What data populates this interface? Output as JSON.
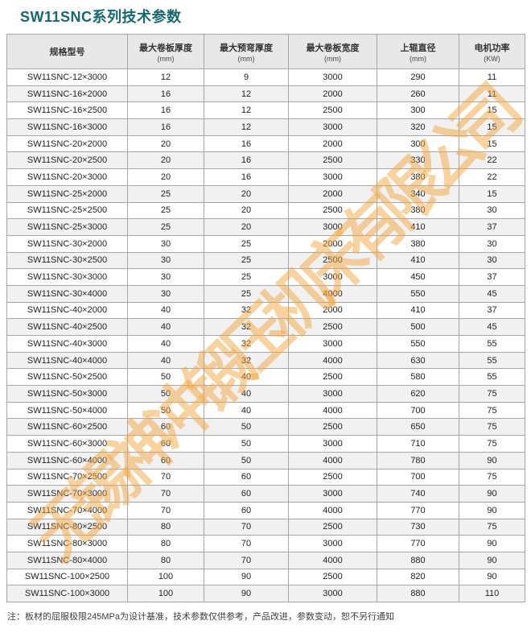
{
  "page": {
    "title": "SW11SNC系列技术参数"
  },
  "table": {
    "columns": [
      {
        "label": "规格型号",
        "unit": ""
      },
      {
        "label": "最大卷板厚度",
        "unit": "(mm)"
      },
      {
        "label": "最大预弯厚度",
        "unit": "(mm)"
      },
      {
        "label": "最大卷板宽度",
        "unit": "(mm)"
      },
      {
        "label": "上辊直径",
        "unit": "(mm)"
      },
      {
        "label": "电机功率",
        "unit": "(KW)"
      }
    ],
    "rows": [
      [
        "SW11SNC-12×3000",
        "12",
        "9",
        "3000",
        "290",
        "11"
      ],
      [
        "SW11SNC-16×2000",
        "16",
        "12",
        "2000",
        "260",
        "11"
      ],
      [
        "SW11SNC-16×2500",
        "16",
        "12",
        "2500",
        "300",
        "15"
      ],
      [
        "SW11SNC-16×3000",
        "16",
        "12",
        "3000",
        "320",
        "15"
      ],
      [
        "SW11SNC-20×2000",
        "20",
        "16",
        "2000",
        "300",
        "15"
      ],
      [
        "SW11SNC-20×2500",
        "20",
        "16",
        "2500",
        "330",
        "22"
      ],
      [
        "SW11SNC-20×3000",
        "20",
        "16",
        "3000",
        "380",
        "22"
      ],
      [
        "SW11SNC-25×2000",
        "25",
        "20",
        "2000",
        "340",
        "15"
      ],
      [
        "SW11SNC-25×2500",
        "25",
        "20",
        "2500",
        "380",
        "30"
      ],
      [
        "SW11SNC-25×3000",
        "25",
        "20",
        "3000",
        "410",
        "37"
      ],
      [
        "SW11SNC-30×2000",
        "30",
        "25",
        "2000",
        "380",
        "30"
      ],
      [
        "SW11SNC-30×2500",
        "30",
        "25",
        "2500",
        "410",
        "30"
      ],
      [
        "SW11SNC-30×3000",
        "30",
        "25",
        "3000",
        "450",
        "37"
      ],
      [
        "SW11SNC-30×4000",
        "30",
        "25",
        "4000",
        "550",
        "45"
      ],
      [
        "SW11SNC-40×2000",
        "40",
        "32",
        "2000",
        "410",
        "37"
      ],
      [
        "SW11SNC-40×2500",
        "40",
        "32",
        "2500",
        "500",
        "45"
      ],
      [
        "SW11SNC-40×3000",
        "40",
        "32",
        "3000",
        "550",
        "55"
      ],
      [
        "SW11SNC-40×4000",
        "40",
        "32",
        "4000",
        "630",
        "55"
      ],
      [
        "SW11SNC-50×2500",
        "50",
        "40",
        "2500",
        "580",
        "55"
      ],
      [
        "SW11SNC-50×3000",
        "50",
        "40",
        "3000",
        "620",
        "75"
      ],
      [
        "SW11SNC-50×4000",
        "50",
        "40",
        "4000",
        "700",
        "75"
      ],
      [
        "SW11SNC-60×2500",
        "60",
        "50",
        "2500",
        "650",
        "75"
      ],
      [
        "SW11SNC-60×3000",
        "60",
        "50",
        "3000",
        "710",
        "75"
      ],
      [
        "SW11SNC-60×4000",
        "60",
        "50",
        "4000",
        "780",
        "90"
      ],
      [
        "SW11SNC-70×2500",
        "70",
        "60",
        "2500",
        "700",
        "75"
      ],
      [
        "SW11SNC-70×3000",
        "70",
        "60",
        "3000",
        "740",
        "90"
      ],
      [
        "SW11SNC-70×4000",
        "70",
        "60",
        "4000",
        "770",
        "90"
      ],
      [
        "SW11SNC-80×2500",
        "80",
        "70",
        "2500",
        "730",
        "75"
      ],
      [
        "SW11SNC-80×3000",
        "80",
        "70",
        "3000",
        "770",
        "90"
      ],
      [
        "SW11SNC-80×4000",
        "80",
        "70",
        "4000",
        "880",
        "90"
      ],
      [
        "SW11SNC-100×2500",
        "100",
        "90",
        "2500",
        "820",
        "90"
      ],
      [
        "SW11SNC-100×3000",
        "100",
        "90",
        "3000",
        "880",
        "110"
      ]
    ]
  },
  "note": "注：板材的屈服极限245MPa为设计基准，技术参数仅供参考，产品改进，参数变动，恕不另行通知",
  "watermark": {
    "text": "无锡神冲锻压机床有限公司",
    "color": "#F3A73F"
  },
  "colors": {
    "title": "#15696E",
    "header_bg": "#E8E8E8",
    "row_alt_bg": "#F1F1F1",
    "border": "#A6A6A6"
  }
}
